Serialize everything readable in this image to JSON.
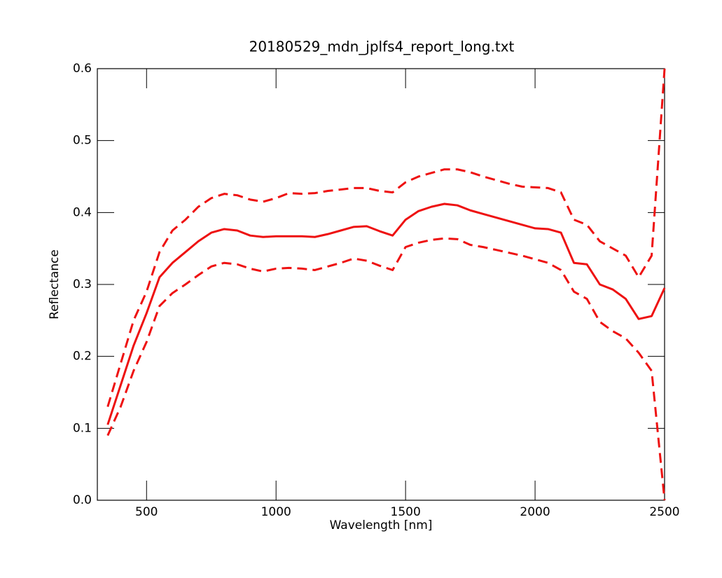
{
  "chart_data": {
    "type": "line",
    "title": "20180529_mdn_jplfs4_report_long.txt",
    "x_label": "Wavelength [nm]",
    "y_label": "Reflectance",
    "x": [
      350,
      400,
      450,
      500,
      550,
      600,
      650,
      700,
      750,
      800,
      850,
      900,
      950,
      1000,
      1050,
      1100,
      1150,
      1200,
      1250,
      1300,
      1350,
      1400,
      1450,
      1500,
      1550,
      1600,
      1650,
      1700,
      1750,
      1800,
      1850,
      1900,
      1950,
      2000,
      2050,
      2100,
      2150,
      2200,
      2250,
      2300,
      2350,
      2400,
      2450,
      2500
    ],
    "series": [
      {
        "color": "#ee1111",
        "dashed": false,
        "values": [
          0.105,
          0.16,
          0.215,
          0.26,
          0.31,
          0.33,
          0.345,
          0.36,
          0.372,
          0.377,
          0.375,
          0.368,
          0.366,
          0.367,
          0.367,
          0.367,
          0.366,
          0.37,
          0.375,
          0.38,
          0.381,
          0.374,
          0.368,
          0.39,
          0.402,
          0.408,
          0.412,
          0.41,
          0.403,
          0.398,
          0.393,
          0.388,
          0.383,
          0.378,
          0.377,
          0.372,
          0.33,
          0.328,
          0.3,
          0.293,
          0.28,
          0.252,
          0.256,
          0.295
        ]
      },
      {
        "color": "#ee1111",
        "dashed": true,
        "values": [
          0.13,
          0.19,
          0.25,
          0.29,
          0.345,
          0.375,
          0.39,
          0.408,
          0.42,
          0.426,
          0.424,
          0.418,
          0.415,
          0.42,
          0.427,
          0.426,
          0.427,
          0.43,
          0.432,
          0.434,
          0.434,
          0.43,
          0.428,
          0.442,
          0.45,
          0.455,
          0.46,
          0.46,
          0.456,
          0.45,
          0.445,
          0.44,
          0.436,
          0.435,
          0.434,
          0.428,
          0.39,
          0.383,
          0.36,
          0.35,
          0.34,
          0.31,
          0.34,
          0.6
        ]
      },
      {
        "color": "#ee1111",
        "dashed": true,
        "values": [
          0.09,
          0.13,
          0.18,
          0.22,
          0.27,
          0.288,
          0.3,
          0.313,
          0.325,
          0.33,
          0.328,
          0.322,
          0.318,
          0.322,
          0.323,
          0.322,
          0.32,
          0.325,
          0.33,
          0.336,
          0.333,
          0.326,
          0.32,
          0.352,
          0.358,
          0.362,
          0.364,
          0.363,
          0.355,
          0.352,
          0.348,
          0.344,
          0.34,
          0.335,
          0.33,
          0.32,
          0.29,
          0.28,
          0.248,
          0.235,
          0.225,
          0.205,
          0.18,
          0.0
        ]
      }
    ],
    "xlim": [
      310,
      2500
    ],
    "xticks": [
      500,
      1000,
      1500,
      2000,
      2500
    ],
    "ylim": [
      0,
      0.6
    ],
    "yticks": [
      {
        "value": 0,
        "label": "0.0"
      },
      0.1,
      0.2,
      0.3,
      0.4,
      0.5,
      0.6
    ]
  }
}
